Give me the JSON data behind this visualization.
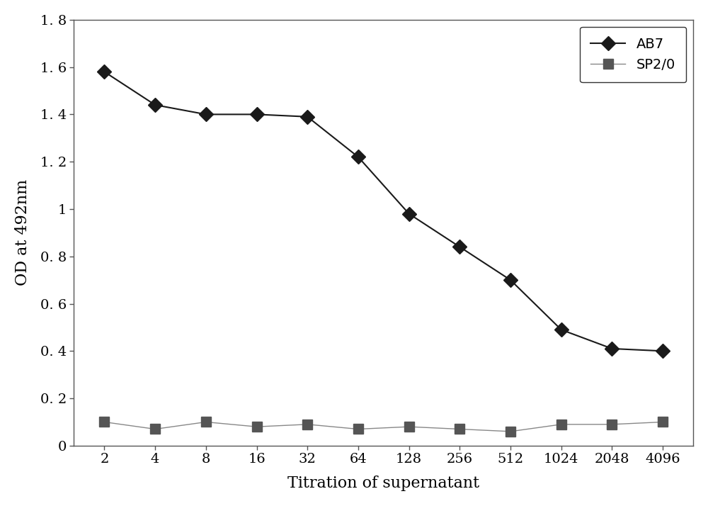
{
  "x_labels": [
    "2",
    "4",
    "8",
    "16",
    "32",
    "64",
    "128",
    "256",
    "512",
    "1024",
    "2048",
    "4096"
  ],
  "x_values": [
    1,
    2,
    3,
    4,
    5,
    6,
    7,
    8,
    9,
    10,
    11,
    12
  ],
  "ab7_values": [
    1.58,
    1.44,
    1.4,
    1.4,
    1.39,
    1.22,
    0.98,
    0.84,
    0.7,
    0.49,
    0.41,
    0.4
  ],
  "sp20_values": [
    0.1,
    0.07,
    0.1,
    0.08,
    0.09,
    0.07,
    0.08,
    0.07,
    0.06,
    0.09,
    0.09,
    0.1
  ],
  "ab7_color": "#1a1a1a",
  "sp20_color": "#555555",
  "line_color": "#1a1a1a",
  "sp20_line_color": "#888888",
  "ylabel": "OD at 492nm",
  "xlabel": "Titration of supernatant",
  "ylim": [
    0,
    1.8
  ],
  "yticks": [
    0,
    0.2,
    0.4,
    0.6,
    0.8,
    1.0,
    1.2,
    1.4,
    1.6,
    1.8
  ],
  "ytick_labels": [
    "0",
    "0. 2",
    "0. 4",
    "0. 6",
    "0. 8",
    "1",
    "1. 2",
    "1. 4",
    "1. 6",
    "1. 8"
  ],
  "legend_ab7": "AB7",
  "legend_sp20": "SP2/0",
  "bg_color": "#ffffff",
  "font_family": "serif"
}
